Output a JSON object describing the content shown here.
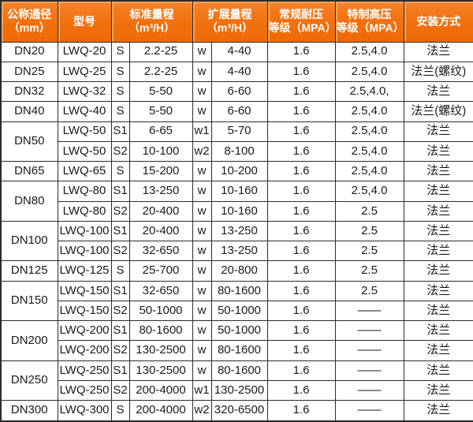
{
  "table": {
    "columns": {
      "diameter": {
        "line1": "公称通径",
        "line2": "（mm）"
      },
      "model": {
        "line1": "型号",
        "line2": ""
      },
      "standard": {
        "line1": "标准量程",
        "line2": "（m³/H）"
      },
      "extended": {
        "line1": "扩展量程",
        "line2": "（m³/H）"
      },
      "normal_pressure": {
        "line1": "常规耐压",
        "line2": "等级（MPA）"
      },
      "high_pressure": {
        "line1": "特制高压",
        "line2": "等级（MPA）"
      },
      "install": {
        "line1": "安装方式",
        "line2": ""
      }
    },
    "rows": [
      {
        "dn": "DN20",
        "dn_span": 1,
        "model": "LWQ-20",
        "s": "S",
        "std": "2.2-25",
        "w": "w",
        "ext": "4-40",
        "normal": "1.6",
        "high": "2.5,4.0",
        "install": "法兰"
      },
      {
        "dn": "DN25",
        "dn_span": 1,
        "model": "LWQ-25",
        "s": "S",
        "std": "2.2-25",
        "w": "w",
        "ext": "4-40",
        "normal": "1.6",
        "high": "2.5,4.0",
        "install": "法兰(螺纹)"
      },
      {
        "dn": "DN32",
        "dn_span": 1,
        "model": "LWQ-32",
        "s": "S",
        "std": "5-50",
        "w": "w",
        "ext": "6-60",
        "normal": "1.6",
        "high": "2.5,4.0,",
        "install": "法兰"
      },
      {
        "dn": "DN40",
        "dn_span": 1,
        "model": "LWQ-40",
        "s": "S",
        "std": "5-50",
        "w": "w",
        "ext": "6-60",
        "normal": "1.6",
        "high": "2.5,4.0",
        "install": "法兰(螺纹)"
      },
      {
        "dn": "DN50",
        "dn_span": 2,
        "model": "LWQ-50",
        "s": "S1",
        "std": "6-65",
        "w": "w1",
        "ext": "5-70",
        "normal": "1.6",
        "high": "2.5,4.0",
        "install": "法兰"
      },
      {
        "dn": null,
        "dn_span": 0,
        "model": "LWQ-50",
        "s": "S2",
        "std": "10-100",
        "w": "w2",
        "ext": "8-100",
        "normal": "1.6",
        "high": "2.5,4.0",
        "install": "法兰"
      },
      {
        "dn": "DN65",
        "dn_span": 1,
        "model": "LWQ-65",
        "s": "S",
        "std": "15-200",
        "w": "w",
        "ext": "10-200",
        "normal": "1.6",
        "high": "2.5,4.0",
        "install": "法兰"
      },
      {
        "dn": "DN80",
        "dn_span": 2,
        "model": "LWQ-80",
        "s": "S1",
        "std": "13-250",
        "w": "w",
        "ext": "10-160",
        "normal": "1.6",
        "high": "2.5,4.0",
        "install": "法兰"
      },
      {
        "dn": null,
        "dn_span": 0,
        "model": "LWQ-80",
        "s": "S2",
        "std": "20-400",
        "w": "w",
        "ext": "10-160",
        "normal": "1.6",
        "high": "2.5",
        "install": "法兰"
      },
      {
        "dn": "DN100",
        "dn_span": 2,
        "model": "LWQ-100",
        "s": "S1",
        "std": "20-400",
        "w": "w",
        "ext": "13-250",
        "normal": "1.6",
        "high": "2.5",
        "install": "法兰"
      },
      {
        "dn": null,
        "dn_span": 0,
        "model": "LWQ-100",
        "s": "S2",
        "std": "32-650",
        "w": "w",
        "ext": "13-250",
        "normal": "1.6",
        "high": "2.5",
        "install": "法兰"
      },
      {
        "dn": "DN125",
        "dn_span": 1,
        "model": "LWQ-125",
        "s": "S",
        "std": "25-700",
        "w": "w",
        "ext": "20-800",
        "normal": "1.6",
        "high": "2.5",
        "install": "法兰"
      },
      {
        "dn": "DN150",
        "dn_span": 2,
        "model": "LWQ-150",
        "s": "S1",
        "std": "32-650",
        "w": "w",
        "ext": "80-1600",
        "normal": "1.6",
        "high": "2.5",
        "install": "法兰"
      },
      {
        "dn": null,
        "dn_span": 0,
        "model": "LWQ-150",
        "s": "S2",
        "std": "50-1000",
        "w": "w",
        "ext": "50-1000",
        "normal": "1.6",
        "high": "——",
        "install": "法兰"
      },
      {
        "dn": "DN200",
        "dn_span": 2,
        "model": "LWQ-200",
        "s": "S1",
        "std": "80-1600",
        "w": "w",
        "ext": "50-1000",
        "normal": "1.6",
        "high": "——",
        "install": "法兰"
      },
      {
        "dn": null,
        "dn_span": 0,
        "model": "LWQ-200",
        "s": "S2",
        "std": "130-2500",
        "w": "w",
        "ext": "80-1600",
        "normal": "1.6",
        "high": "——",
        "install": "法兰"
      },
      {
        "dn": "DN250",
        "dn_span": 2,
        "model": "LWQ-250",
        "s": "S1",
        "std": "130-2500",
        "w": "w",
        "ext": "80-1600",
        "normal": "1.6",
        "high": "——",
        "install": "法兰"
      },
      {
        "dn": null,
        "dn_span": 0,
        "model": "LWQ-250",
        "s": "S2",
        "std": "200-4000",
        "w": "w1",
        "ext": "130-2500",
        "normal": "1.6",
        "high": "——",
        "install": "法兰"
      },
      {
        "dn": "DN300",
        "dn_span": 1,
        "model": "LWQ-300",
        "s": "S",
        "std": "200-4000",
        "w": "w2",
        "ext": "320-6500",
        "normal": "1.6",
        "high": "——",
        "install": "法兰"
      }
    ]
  },
  "colors": {
    "header_bg": "#f0700e",
    "header_highlight": "#fba362",
    "grid_border": "#2b2b2b",
    "header_text": "#ffffff",
    "body_text": "#1a1a1a"
  }
}
